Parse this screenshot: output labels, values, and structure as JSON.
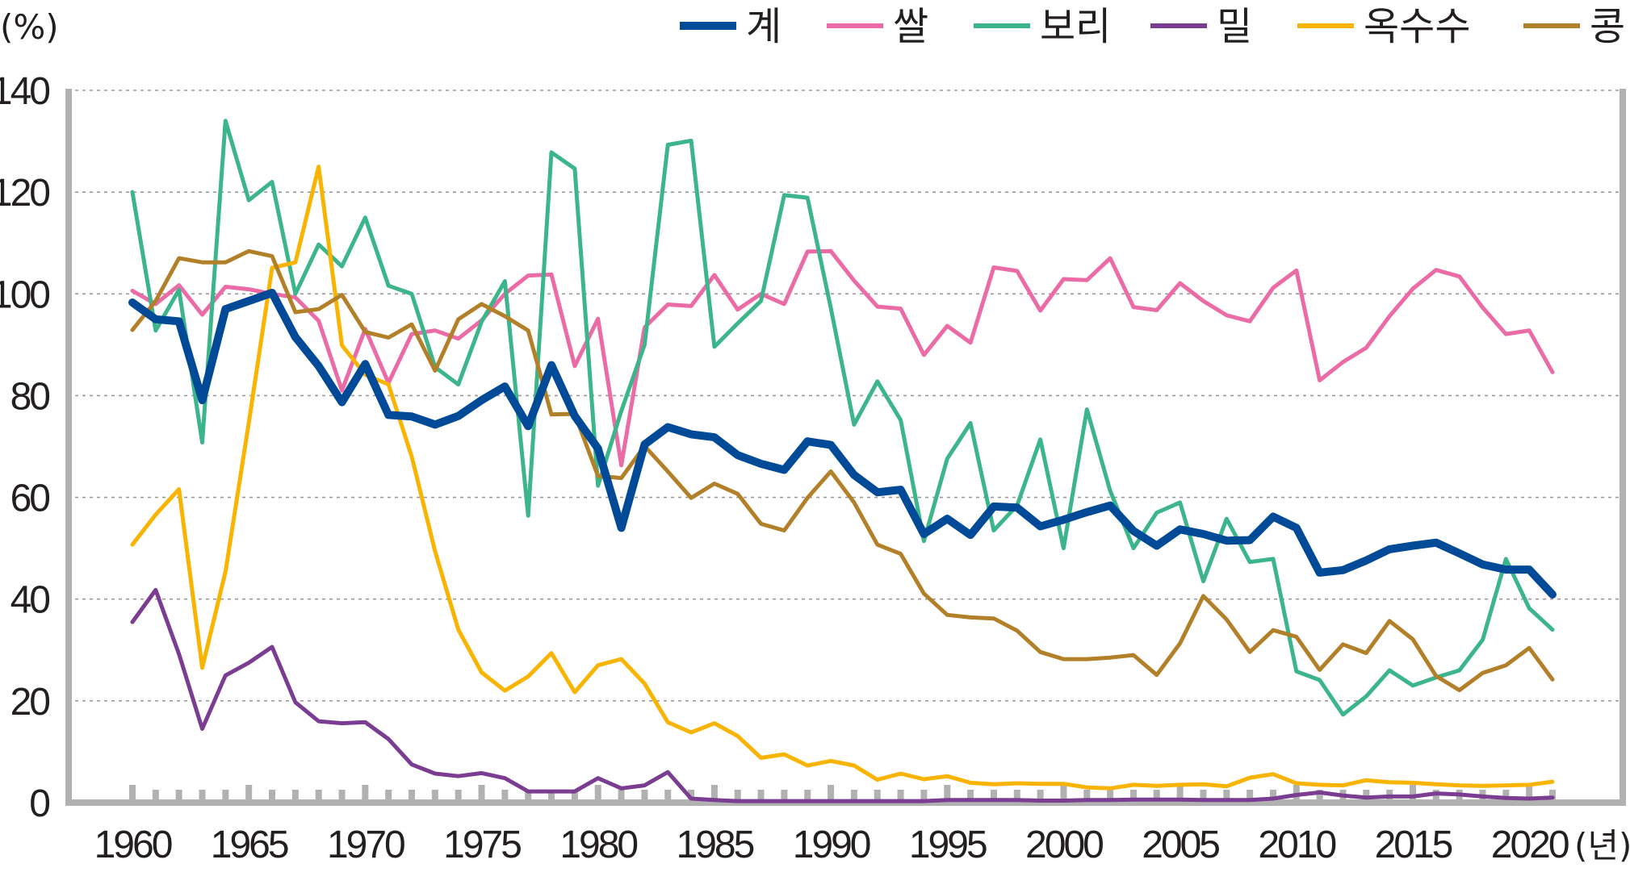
{
  "chart_data": {
    "type": "line",
    "title": "",
    "ylabel": "(%)",
    "xlabel": "(년)",
    "ylim": [
      0,
      140
    ],
    "y_ticks": [
      "0",
      "20",
      "40",
      "60",
      "80",
      "100",
      "120",
      "140"
    ],
    "xlim": [
      1960,
      2021
    ],
    "x_ticks": [
      "1960",
      "1965",
      "1970",
      "1975",
      "1980",
      "1985",
      "1990",
      "1995",
      "2000",
      "2005",
      "2010",
      "2015",
      "2020"
    ],
    "grid": true,
    "legend_position": "top",
    "x": [
      1960,
      1961,
      1962,
      1963,
      1964,
      1965,
      1966,
      1967,
      1968,
      1969,
      1970,
      1971,
      1972,
      1973,
      1974,
      1975,
      1976,
      1977,
      1978,
      1979,
      1980,
      1981,
      1982,
      1983,
      1984,
      1985,
      1986,
      1987,
      1988,
      1989,
      1990,
      1991,
      1992,
      1993,
      1994,
      1995,
      1996,
      1997,
      1998,
      1999,
      2000,
      2001,
      2002,
      2003,
      2004,
      2005,
      2006,
      2007,
      2008,
      2009,
      2010,
      2011,
      2012,
      2013,
      2014,
      2015,
      2016,
      2017,
      2018,
      2019,
      2020,
      2021
    ],
    "series": [
      {
        "name": "계",
        "color": "#004a98",
        "width": 10,
        "values": [
          98.3,
          95.0,
          94.6,
          79.1,
          97.0,
          98.6,
          100.2,
          91.5,
          85.8,
          78.7,
          86.2,
          76.2,
          75.9,
          74.3,
          76.0,
          79.1,
          81.8,
          74.0,
          86.0,
          76.0,
          69.6,
          54.0,
          70.4,
          73.8,
          72.4,
          71.8,
          68.3,
          66.6,
          65.4,
          71.0,
          70.3,
          64.4,
          61.0,
          61.5,
          52.8,
          55.8,
          52.6,
          58.2,
          58.0,
          54.3,
          55.6,
          57.1,
          58.4,
          53.4,
          50.5,
          53.7,
          52.8,
          51.5,
          51.6,
          56.2,
          54.0,
          45.2,
          45.7,
          47.6,
          49.8,
          50.5,
          51.1,
          49.0,
          46.8,
          45.8,
          45.8,
          40.9
        ]
      },
      {
        "name": "쌀",
        "color": "#ea6ba5",
        "width": 5,
        "values": [
          100.6,
          98.0,
          101.7,
          95.9,
          101.4,
          100.9,
          100.0,
          99.3,
          94.7,
          81.0,
          93.1,
          82.5,
          92.1,
          92.8,
          91.2,
          94.8,
          100.0,
          103.6,
          103.8,
          85.8,
          95.1,
          66.3,
          93.4,
          97.9,
          97.6,
          103.7,
          96.9,
          100.0,
          98.0,
          108.3,
          108.4,
          102.6,
          97.5,
          97.1,
          88.0,
          93.7,
          90.4,
          105.2,
          104.5,
          96.7,
          102.9,
          102.7,
          107.0,
          97.4,
          96.8,
          102.1,
          98.6,
          95.8,
          94.6,
          101.2,
          104.6,
          83.0,
          86.6,
          89.4,
          95.6,
          101.0,
          104.7,
          103.4,
          97.3,
          92.1,
          92.8,
          84.6
        ]
      },
      {
        "name": "보리",
        "color": "#3db58b",
        "width": 5,
        "values": [
          120.0,
          92.8,
          100.8,
          70.8,
          134.0,
          118.4,
          122.0,
          100.0,
          109.7,
          105.4,
          115.0,
          101.6,
          100.0,
          85.6,
          82.2,
          94.5,
          102.5,
          56.4,
          127.8,
          124.6,
          62.3,
          77.0,
          90.0,
          129.3,
          130.1,
          89.6,
          94.2,
          98.6,
          119.4,
          118.9,
          97.2,
          74.3,
          82.8,
          75.2,
          51.4,
          67.6,
          74.6,
          53.5,
          58.4,
          71.4,
          50.0,
          77.3,
          61.3,
          50.0,
          57.0,
          59.0,
          43.5,
          55.8,
          47.3,
          47.9,
          25.8,
          24.1,
          17.3,
          20.9,
          26.0,
          23.0,
          24.6,
          26.0,
          32.0,
          47.9,
          38.2,
          34.0
        ]
      },
      {
        "name": "밀",
        "color": "#7a3d91",
        "width": 5,
        "values": [
          35.5,
          41.8,
          29.2,
          14.5,
          25.0,
          27.5,
          30.6,
          19.7,
          16.0,
          15.6,
          15.8,
          12.5,
          7.5,
          5.7,
          5.2,
          5.8,
          4.8,
          2.2,
          2.2,
          2.2,
          4.8,
          2.8,
          3.4,
          6.0,
          0.8,
          0.5,
          0.3,
          0.3,
          0.3,
          0.3,
          0.3,
          0.3,
          0.3,
          0.3,
          0.3,
          0.5,
          0.5,
          0.5,
          0.5,
          0.4,
          0.4,
          0.5,
          0.5,
          0.6,
          0.6,
          0.6,
          0.5,
          0.5,
          0.5,
          0.8,
          1.5,
          2.0,
          1.4,
          1.0,
          1.2,
          1.2,
          1.8,
          1.6,
          1.2,
          0.9,
          0.8,
          1.0
        ]
      },
      {
        "name": "옥수수",
        "color": "#f8b400",
        "width": 5,
        "values": [
          50.7,
          56.6,
          61.6,
          26.5,
          45.4,
          74.7,
          105.1,
          106.2,
          125.0,
          89.9,
          84.1,
          82.2,
          68.0,
          49.4,
          34.0,
          25.6,
          22.0,
          24.8,
          29.4,
          21.7,
          27.0,
          28.2,
          23.4,
          15.8,
          13.8,
          15.6,
          13.1,
          8.8,
          9.5,
          7.3,
          8.2,
          7.3,
          4.5,
          5.7,
          4.6,
          5.2,
          3.9,
          3.6,
          3.8,
          3.7,
          3.7,
          3.0,
          2.8,
          3.5,
          3.3,
          3.5,
          3.6,
          3.2,
          4.9,
          5.6,
          3.8,
          3.5,
          3.4,
          4.4,
          4.0,
          3.9,
          3.6,
          3.4,
          3.3,
          3.4,
          3.5,
          4.1
        ]
      },
      {
        "name": "콩",
        "color": "#b28029",
        "width": 5,
        "values": [
          92.9,
          98.6,
          107.0,
          106.2,
          106.2,
          108.4,
          107.4,
          96.4,
          97.0,
          99.8,
          92.5,
          91.4,
          94.0,
          84.9,
          95.0,
          98.0,
          95.6,
          92.8,
          76.3,
          76.4,
          64.2,
          63.8,
          70.1,
          65.1,
          59.9,
          62.7,
          60.7,
          54.8,
          53.5,
          59.9,
          65.1,
          59.0,
          50.7,
          48.9,
          41.1,
          36.9,
          36.4,
          36.2,
          33.8,
          29.6,
          28.2,
          28.2,
          28.5,
          29.0,
          25.1,
          31.3,
          40.6,
          36.0,
          29.6,
          33.9,
          32.6,
          26.1,
          31.1,
          29.4,
          35.7,
          32.1,
          24.9,
          22.1,
          25.5,
          27.0,
          30.4,
          24.2
        ]
      }
    ]
  }
}
